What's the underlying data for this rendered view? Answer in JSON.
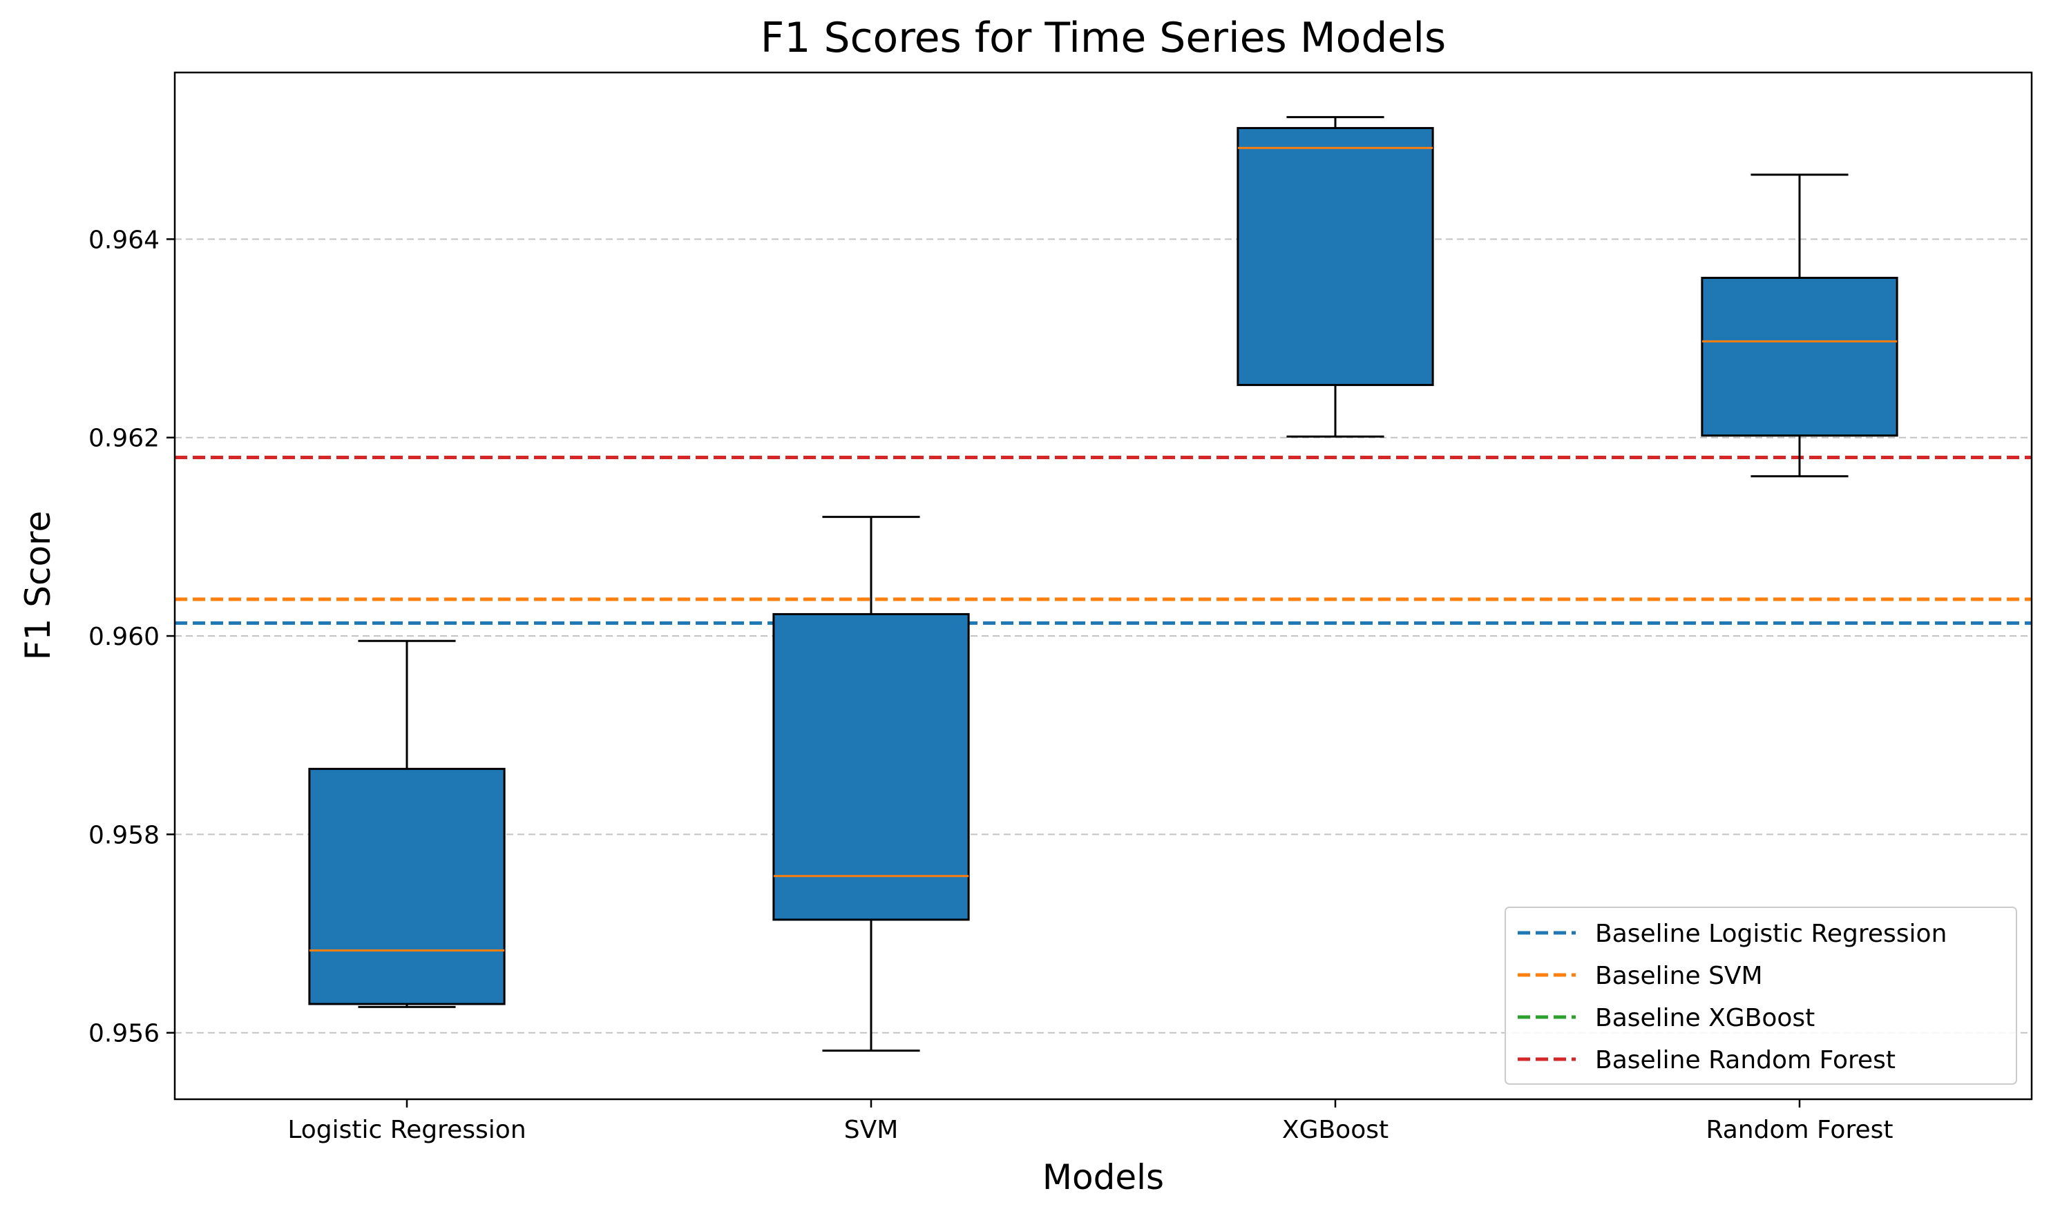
{
  "chart_data": {
    "type": "box",
    "title": "F1 Scores for Time Series Models",
    "xlabel": "Models",
    "ylabel": "F1 Score",
    "ylim": [
      0.95533,
      0.96568
    ],
    "yticks": [
      0.956,
      0.958,
      0.96,
      0.962,
      0.964
    ],
    "ytick_labels": [
      "0.956",
      "0.958",
      "0.960",
      "0.962",
      "0.964"
    ],
    "grid": "y-dashed",
    "categories": [
      "Logistic Regression",
      "SVM",
      "XGBoost",
      "Random Forest"
    ],
    "boxes": [
      {
        "name": "Logistic Regression",
        "whisker_low": 0.95626,
        "q1": 0.95629,
        "median": 0.95683,
        "q3": 0.95866,
        "whisker_high": 0.95995
      },
      {
        "name": "SVM",
        "whisker_low": 0.95582,
        "q1": 0.95714,
        "median": 0.95758,
        "q3": 0.96022,
        "whisker_high": 0.9612
      },
      {
        "name": "XGBoost",
        "whisker_low": 0.96201,
        "q1": 0.96253,
        "median": 0.96492,
        "q3": 0.96512,
        "whisker_high": 0.96523
      },
      {
        "name": "Random Forest",
        "whisker_low": 0.96161,
        "q1": 0.96202,
        "median": 0.96297,
        "q3": 0.96361,
        "whisker_high": 0.96465
      }
    ],
    "box_color": "#1f77b4",
    "median_color": "#ff7f0e",
    "baselines": [
      {
        "name": "Baseline Logistic Regression",
        "value": 0.96013,
        "color": "#1f77b4"
      },
      {
        "name": "Baseline SVM",
        "value": 0.96037,
        "color": "#ff7f0e"
      },
      {
        "name": "Baseline XGBoost",
        "value": 0.9618,
        "color": "#2ca02c"
      },
      {
        "name": "Baseline Random Forest",
        "value": 0.9618,
        "color": "#d62728"
      }
    ],
    "legend_position": "lower-right"
  }
}
